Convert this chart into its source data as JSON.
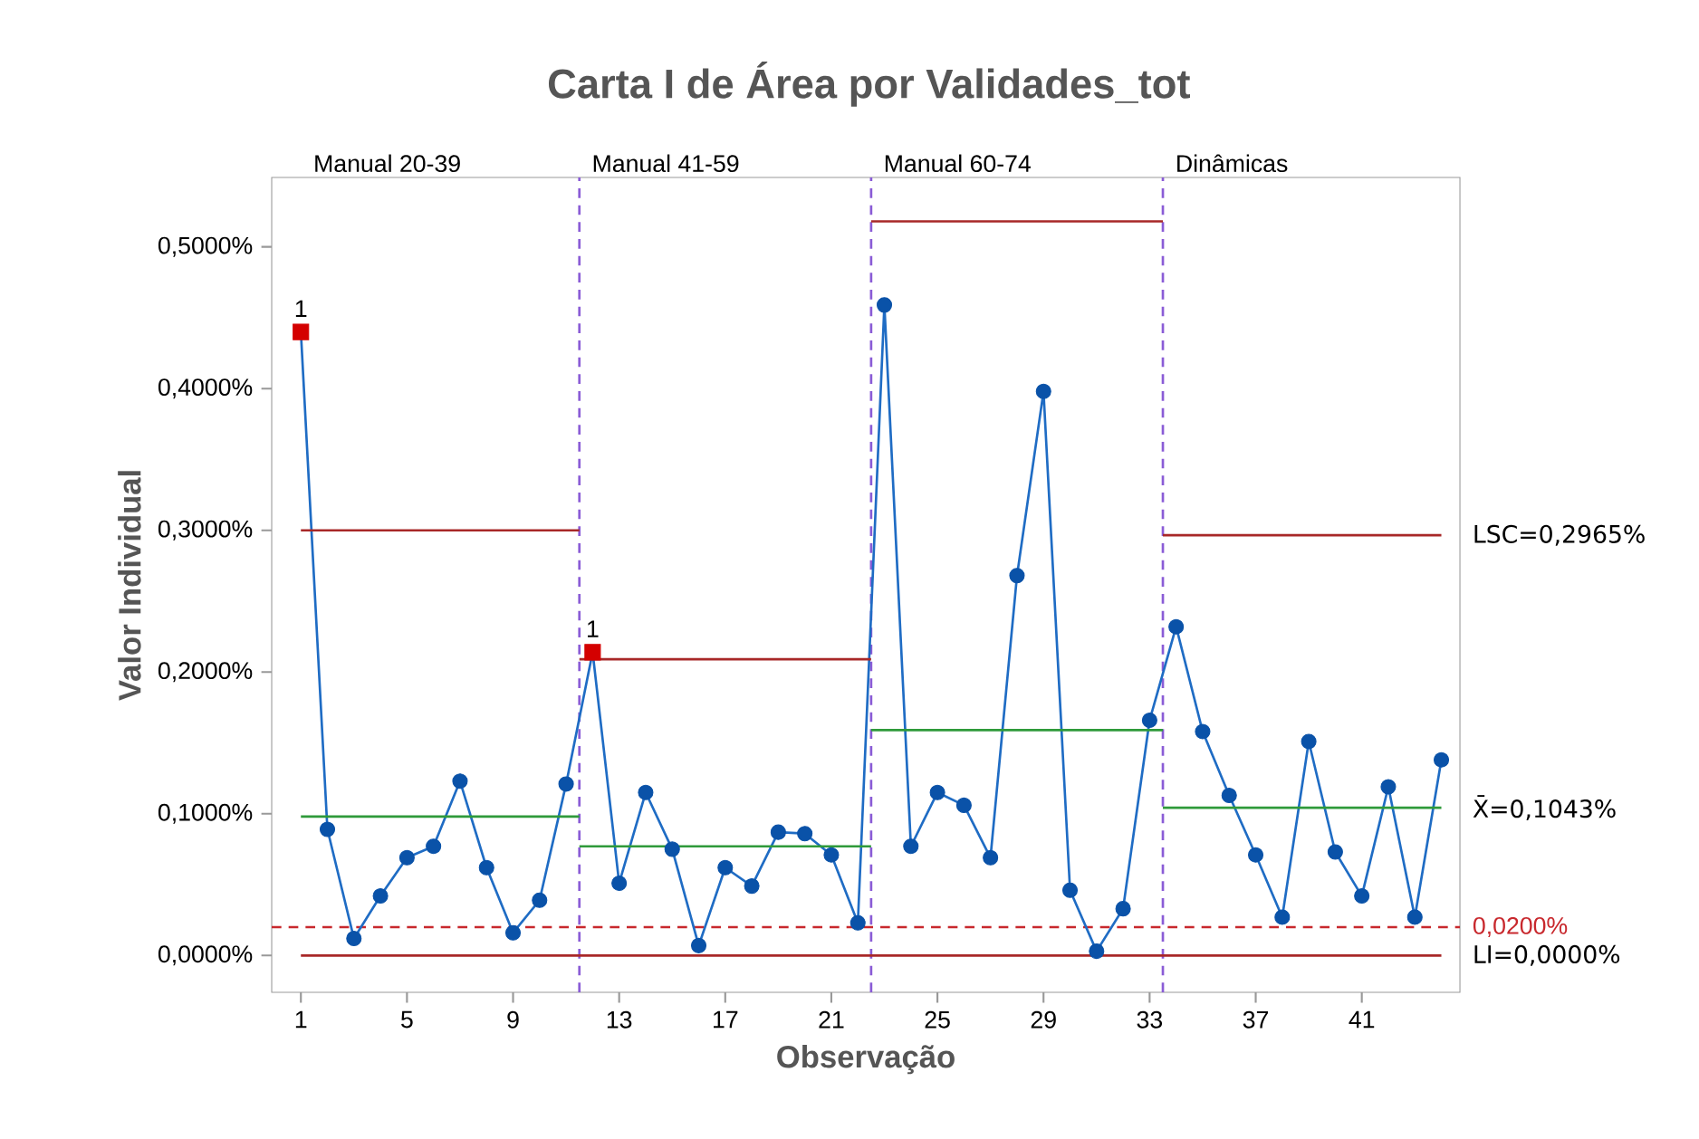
{
  "chart_data": {
    "type": "line",
    "title": "Carta I de Área por Validades_tot",
    "xlabel": "Observação",
    "ylabel": "Valor Individual",
    "xlim": [
      -0.1,
      44.7
    ],
    "ylim": [
      -0.026,
      0.549
    ],
    "xticks": [
      1,
      5,
      9,
      13,
      17,
      21,
      25,
      29,
      33,
      37,
      41
    ],
    "yticks": [
      {
        "value": 0,
        "label": "0,0000%"
      },
      {
        "value": 0.1,
        "label": "0,1000%"
      },
      {
        "value": 0.2,
        "label": "0,2000%"
      },
      {
        "value": 0.3,
        "label": "0,3000%"
      },
      {
        "value": 0.4,
        "label": "0,4000%"
      },
      {
        "value": 0.5,
        "label": "0,5000%"
      }
    ],
    "grid": false,
    "series": [
      {
        "color": "#1f6cc4",
        "marker": "none",
        "x": [
          1,
          2,
          3,
          4,
          5,
          6,
          7,
          8,
          9,
          10,
          11,
          12,
          13,
          14,
          15,
          16,
          17,
          18,
          19,
          20,
          21,
          22,
          23,
          24,
          25,
          26,
          27,
          28,
          29,
          30,
          31,
          32,
          33,
          34,
          35,
          36,
          37,
          38,
          39,
          40,
          41,
          42,
          43,
          44
        ],
        "values": [
          0.44,
          0.089,
          0.012,
          0.042,
          0.069,
          0.077,
          0.123,
          0.062,
          0.016,
          0.039,
          0.121,
          0.214,
          0.051,
          0.115,
          0.075,
          0.007,
          0.062,
          0.049,
          0.087,
          0.086,
          0.071,
          0.023,
          0.459,
          0.077,
          0.115,
          0.106,
          0.069,
          0.268,
          0.398,
          0.046,
          0.003,
          0.033,
          0.166,
          0.232,
          0.158,
          0.113,
          0.071,
          0.027,
          0.151,
          0.073,
          0.042,
          0.119,
          0.027,
          0.138
        ]
      },
      {
        "type": "scatter",
        "color": "#0a52a8",
        "marker": "circle",
        "x": [
          2,
          3,
          4,
          5,
          6,
          7,
          8,
          9,
          10,
          11,
          13,
          14,
          15,
          16,
          17,
          18,
          19,
          20,
          21,
          22,
          23,
          24,
          25,
          26,
          27,
          28,
          29,
          30,
          31,
          32,
          33,
          34,
          35,
          36,
          37,
          38,
          39,
          40,
          41,
          42,
          43,
          44
        ],
        "values": [
          0.089,
          0.012,
          0.042,
          0.069,
          0.077,
          0.123,
          0.062,
          0.016,
          0.039,
          0.121,
          0.051,
          0.115,
          0.075,
          0.007,
          0.062,
          0.049,
          0.087,
          0.086,
          0.071,
          0.023,
          0.459,
          0.077,
          0.115,
          0.106,
          0.069,
          0.268,
          0.398,
          0.046,
          0.003,
          0.033,
          0.166,
          0.232,
          0.158,
          0.113,
          0.071,
          0.027,
          0.151,
          0.073,
          0.042,
          0.119,
          0.027,
          0.138
        ]
      },
      {
        "type": "scatter",
        "color": "#d40000",
        "marker": "square",
        "x": [
          1,
          12
        ],
        "values": [
          0.44,
          0.214
        ]
      },
      {
        "type": "line",
        "color": "#a82828",
        "marker": "none",
        "x": [
          1,
          11.5
        ],
        "values": [
          0.3,
          0.3
        ]
      },
      {
        "type": "line",
        "color": "#a82828",
        "marker": "none",
        "x": [
          11.5,
          22.5
        ],
        "values": [
          0.209,
          0.209
        ]
      },
      {
        "type": "line",
        "color": "#a82828",
        "marker": "none",
        "x": [
          22.5,
          33.5
        ],
        "values": [
          0.518,
          0.518
        ]
      },
      {
        "type": "line",
        "name": "LSC=0,2965%",
        "color": "#a82828",
        "marker": "none",
        "x": [
          33.5,
          44
        ],
        "values": [
          0.2965,
          0.2965
        ]
      },
      {
        "type": "line",
        "color": "#2f9a3a",
        "marker": "none",
        "x": [
          1,
          11.5
        ],
        "values": [
          0.098,
          0.098
        ]
      },
      {
        "type": "line",
        "color": "#2f9a3a",
        "marker": "none",
        "x": [
          11.5,
          22.5
        ],
        "values": [
          0.077,
          0.077
        ]
      },
      {
        "type": "line",
        "color": "#2f9a3a",
        "marker": "none",
        "x": [
          22.5,
          33.5
        ],
        "values": [
          0.159,
          0.159
        ]
      },
      {
        "type": "line",
        "name": "X̄=0,1043%",
        "color": "#2f9a3a",
        "marker": "none",
        "x": [
          33.5,
          44
        ],
        "values": [
          0.1043,
          0.1043
        ]
      },
      {
        "type": "line",
        "name": "LI=0,0000%",
        "color": "#a82828",
        "marker": "none",
        "x": [
          1,
          44
        ],
        "values": [
          0,
          0
        ]
      }
    ],
    "ref_lines": [
      {
        "axis": "y",
        "value": 0.02,
        "label": "0,0200%",
        "color": "#c8282d",
        "line_style": "dashed"
      },
      {
        "axis": "x",
        "value": 11.5,
        "color": "#8a5cd6",
        "line_style": "dashed"
      },
      {
        "axis": "x",
        "value": 22.5,
        "color": "#8a5cd6",
        "line_style": "dashed"
      },
      {
        "axis": "x",
        "value": 33.5,
        "color": "#8a5cd6",
        "line_style": "dashed"
      }
    ],
    "annotations": [
      "Manual 20-39",
      "Manual 41-59",
      "Manual 60-74",
      "Dinâmicas",
      {
        "text": "1",
        "x": 1,
        "y": 0.44
      },
      {
        "text": "1",
        "x": 12,
        "y": 0.214
      }
    ]
  }
}
